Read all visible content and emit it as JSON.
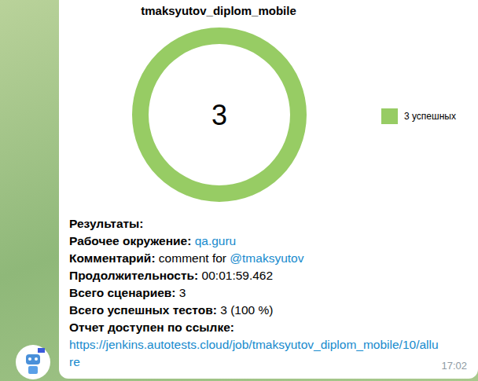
{
  "chart_data": {
    "type": "donut",
    "title": "tmaksyutov_diplom_mobile",
    "categories": [
      "3 успешных"
    ],
    "values": [
      3
    ],
    "colors": [
      "#97cc64"
    ],
    "total": "3",
    "legend": "right"
  },
  "message": {
    "heading": "Результаты:",
    "lines": [
      {
        "label": "Рабочее окружение:",
        "parts": [
          {
            "text": "qa.guru",
            "link": true
          }
        ]
      },
      {
        "label": "Комментарий:",
        "parts": [
          {
            "text": "comment for ",
            "link": false
          },
          {
            "text": "@tmaksyutov",
            "link": true
          }
        ]
      },
      {
        "label": "Продолжительность:",
        "parts": [
          {
            "text": "00:01:59.462",
            "link": false
          }
        ]
      },
      {
        "label": "Всего сценариев:",
        "parts": [
          {
            "text": "3",
            "link": false
          }
        ]
      },
      {
        "label": "Всего успешных тестов:",
        "parts": [
          {
            "text": "3 (100 %)",
            "link": false
          }
        ]
      },
      {
        "label": "Отчет доступен по ссылке:",
        "parts": [
          {
            "text": "https://jenkins.autotests.cloud/job/tmaksyutov_diplom_mobile/10/allure",
            "link": true,
            "block": true
          }
        ]
      }
    ],
    "time": "17:02"
  }
}
